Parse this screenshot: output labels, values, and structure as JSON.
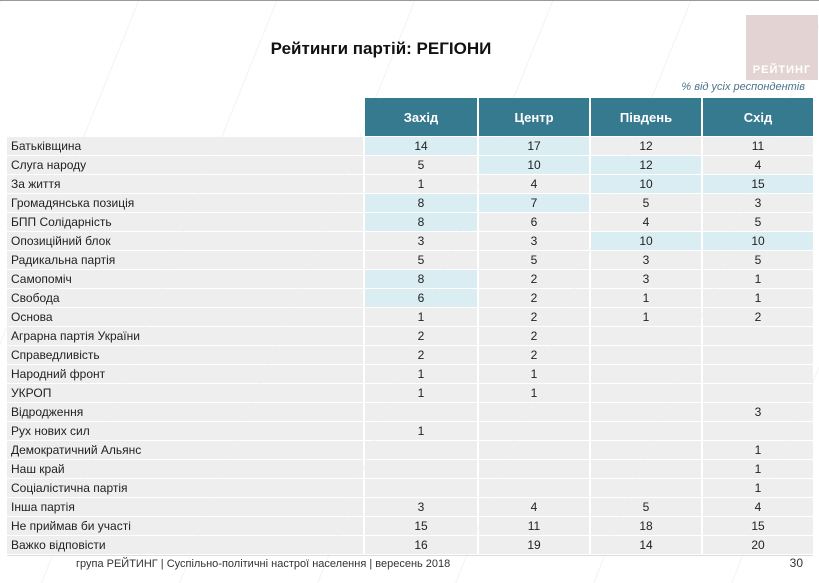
{
  "page": {
    "title": "Рейтинги партій: РЕГІОНИ",
    "note": "% від усіх респондентів",
    "logo_text": "РЕЙТИНГ",
    "footer": "група РЕЙТИНГ | Суспільно-політичні настрої населення | вересень 2018",
    "page_number": "30"
  },
  "colors": {
    "header_bg": "#367a90",
    "row_bg": "#eeeeee",
    "highlight_bg": "#d9edf3",
    "logo_bg": "#e3d4d3",
    "note_color": "#4a7488"
  },
  "chart_data": {
    "type": "table",
    "title": "Рейтинги партій: РЕГІОНИ",
    "unit_note": "% від усіх респондентів",
    "columns": [
      "Захід",
      "Центр",
      "Південь",
      "Схід"
    ],
    "rows": [
      {
        "label": "Батьківщина",
        "values": [
          "14",
          "17",
          "12",
          "11"
        ],
        "highlighted": [
          0,
          1
        ]
      },
      {
        "label": "Слуга народу",
        "values": [
          "5",
          "10",
          "12",
          "4"
        ],
        "highlighted": [
          1,
          2
        ]
      },
      {
        "label": "За життя",
        "values": [
          "1",
          "4",
          "10",
          "15"
        ],
        "highlighted": [
          2,
          3
        ]
      },
      {
        "label": "Громадянська позиція",
        "values": [
          "8",
          "7",
          "5",
          "3"
        ],
        "highlighted": [
          0,
          1
        ]
      },
      {
        "label": "БПП Солідарність",
        "values": [
          "8",
          "6",
          "4",
          "5"
        ],
        "highlighted": [
          0
        ]
      },
      {
        "label": "Опозиційний блок",
        "values": [
          "3",
          "3",
          "10",
          "10"
        ],
        "highlighted": [
          2,
          3
        ]
      },
      {
        "label": "Радикальна партія",
        "values": [
          "5",
          "5",
          "3",
          "5"
        ],
        "highlighted": []
      },
      {
        "label": "Самопоміч",
        "values": [
          "8",
          "2",
          "3",
          "1"
        ],
        "highlighted": [
          0
        ]
      },
      {
        "label": "Свобода",
        "values": [
          "6",
          "2",
          "1",
          "1"
        ],
        "highlighted": [
          0
        ]
      },
      {
        "label": "Основа",
        "values": [
          "1",
          "2",
          "1",
          "2"
        ],
        "highlighted": []
      },
      {
        "label": "Аграрна партія України",
        "values": [
          "2",
          "2",
          "",
          ""
        ],
        "highlighted": []
      },
      {
        "label": "Справедливість",
        "values": [
          "2",
          "2",
          "",
          ""
        ],
        "highlighted": []
      },
      {
        "label": "Народний фронт",
        "values": [
          "1",
          "1",
          "",
          ""
        ],
        "highlighted": []
      },
      {
        "label": "УКРОП",
        "values": [
          "1",
          "1",
          "",
          ""
        ],
        "highlighted": []
      },
      {
        "label": "Відродження",
        "values": [
          "",
          "",
          "",
          "3"
        ],
        "highlighted": []
      },
      {
        "label": "Рух нових сил",
        "values": [
          "1",
          "",
          "",
          ""
        ],
        "highlighted": []
      },
      {
        "label": "Демократичний Альянс",
        "values": [
          "",
          "",
          "",
          "1"
        ],
        "highlighted": []
      },
      {
        "label": "Наш край",
        "values": [
          "",
          "",
          "",
          "1"
        ],
        "highlighted": []
      },
      {
        "label": "Соціалістична партія",
        "values": [
          "",
          "",
          "",
          "1"
        ],
        "highlighted": []
      },
      {
        "label": "Інша партія",
        "values": [
          "3",
          "4",
          "5",
          "4"
        ],
        "highlighted": []
      },
      {
        "label": "Не приймав би участі",
        "values": [
          "15",
          "11",
          "18",
          "15"
        ],
        "highlighted": []
      },
      {
        "label": "Важко відповісти",
        "values": [
          "16",
          "19",
          "14",
          "20"
        ],
        "highlighted": []
      }
    ]
  }
}
